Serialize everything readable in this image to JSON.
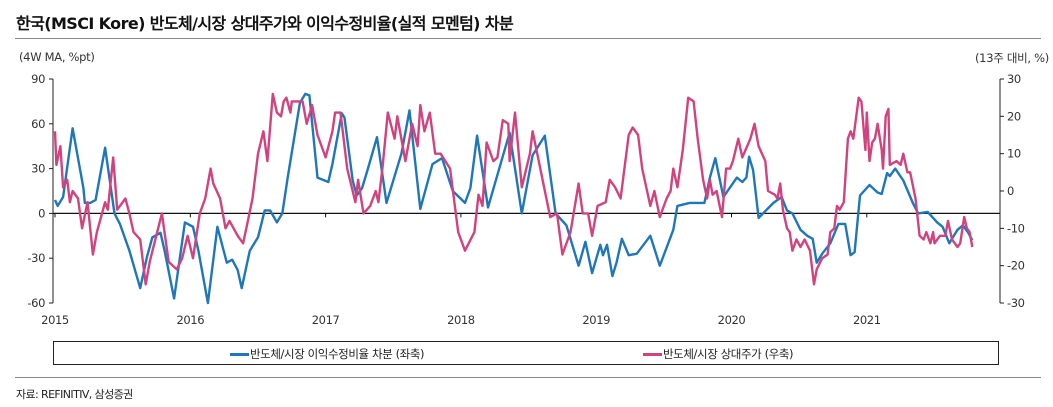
{
  "title": "한국(MSCI Kore) 반도체/시장 상대주가와 이익수정비율(실적 모멘텀) 차분",
  "left_unit": "(4W MA, %pt)",
  "right_unit": "(13주 대비, %)",
  "source": "자료: REFINITIV, 삼성증권",
  "colors": {
    "blue": "#1f77b8",
    "pink": "#d1437f"
  },
  "chart_data": {
    "type": "line",
    "title": "한국(MSCI Kore) 반도체/시장 상대주가와 이익수정비율(실적 모멘텀) 차분",
    "xlabel": "",
    "x_ticks": [
      "2015",
      "2016",
      "2017",
      "2018",
      "2019",
      "2020",
      "2021"
    ],
    "xlim": [
      2015,
      2022
    ],
    "left_axis": {
      "label": "(4W MA, %pt)",
      "ylim": [
        -60,
        90
      ],
      "ticks": [
        "90",
        "60",
        "30",
        "0",
        "-30",
        "-60"
      ]
    },
    "right_axis": {
      "label": "(13주 대비, %)",
      "ylim": [
        -30,
        30
      ],
      "ticks": [
        "30",
        "20",
        "10",
        "0",
        "-10",
        "-20",
        "-30"
      ]
    },
    "legend_position": "bottom",
    "series": [
      {
        "name": "반도체/시장 이익수정비율 차분 (좌축)",
        "axis": "left",
        "color": "#1f77b8",
        "x": [
          2015.0,
          2015.02,
          2015.06,
          2015.13,
          2015.21,
          2015.22,
          2015.26,
          2015.3,
          2015.37,
          2015.44,
          2015.48,
          2015.55,
          2015.63,
          2015.68,
          2015.72,
          2015.78,
          2015.81,
          2015.88,
          2015.96,
          2016.02,
          2016.06,
          2016.13,
          2016.2,
          2016.27,
          2016.31,
          2016.35,
          2016.38,
          2016.44,
          2016.5,
          2016.55,
          2016.59,
          2016.64,
          2016.68,
          2016.72,
          2016.81,
          2016.85,
          2016.88,
          2016.94,
          2017.02,
          2017.05,
          2017.12,
          2017.14,
          2017.2,
          2017.23,
          2017.27,
          2017.31,
          2017.38,
          2017.45,
          2017.56,
          2017.62,
          2017.7,
          2017.79,
          2017.86,
          2017.94,
          2018.03,
          2018.07,
          2018.12,
          2018.2,
          2018.36,
          2018.45,
          2018.53,
          2018.62,
          2018.7,
          2018.78,
          2018.87,
          2018.92,
          2018.97,
          2019.03,
          2019.05,
          2019.08,
          2019.12,
          2019.15,
          2019.19,
          2019.24,
          2019.3,
          2019.4,
          2019.47,
          2019.57,
          2019.6,
          2019.69,
          2019.8,
          2019.84,
          2019.88,
          2019.94,
          2020.04,
          2020.08,
          2020.11,
          2020.13,
          2020.16,
          2020.2,
          2020.31,
          2020.37,
          2020.41,
          2020.45,
          2020.51,
          2020.56,
          2020.6,
          2020.63,
          2020.67,
          2020.73,
          2020.79,
          2020.84,
          2020.88,
          2020.91,
          2020.95,
          2021.02,
          2021.08,
          2021.11,
          2021.15,
          2021.17,
          2021.21,
          2021.27,
          2021.34,
          2021.38,
          2021.45,
          2021.52,
          2021.56,
          2021.61,
          2021.67,
          2021.71,
          2021.75,
          2021.78
        ],
        "values": [
          9,
          5,
          11,
          57,
          17,
          7,
          7,
          9,
          44,
          0,
          -7,
          -25,
          -50,
          -29,
          -16,
          -13,
          -25,
          -57,
          -6,
          -9,
          -25,
          -60,
          -9,
          -33,
          -31,
          -38,
          -50,
          -25,
          -16,
          2,
          2,
          -6,
          0,
          24,
          74,
          80,
          79,
          24,
          21,
          33,
          67,
          64,
          22,
          12,
          17,
          29,
          51,
          7,
          40,
          69,
          3,
          33,
          37,
          15,
          7,
          17,
          52,
          4,
          54,
          0,
          39,
          52,
          0,
          -8,
          -35,
          -19,
          -40,
          -21,
          -28,
          -21,
          -42,
          -33,
          -17,
          -28,
          -27,
          -15,
          -35,
          -11,
          5,
          7,
          7,
          24,
          37,
          11,
          24,
          21,
          24,
          38,
          29,
          -3,
          7,
          11,
          2,
          0,
          -11,
          -15,
          -17,
          -33,
          -27,
          -20,
          -7,
          -7,
          -28,
          -26,
          12,
          19,
          14,
          13,
          27,
          25,
          30,
          22,
          7,
          0,
          1,
          -6,
          -9,
          -20,
          -11,
          -8,
          -13,
          -18
        ]
      },
      {
        "name": "반도체/시장 상대주가 (우축)",
        "axis": "right",
        "color": "#d1437f",
        "x": [
          2015.0,
          2015.01,
          2015.04,
          2015.06,
          2015.09,
          2015.11,
          2015.13,
          2015.17,
          2015.2,
          2015.24,
          2015.28,
          2015.31,
          2015.37,
          2015.39,
          2015.43,
          2015.46,
          2015.52,
          2015.55,
          2015.58,
          2015.63,
          2015.67,
          2015.7,
          2015.79,
          2015.84,
          2015.9,
          2015.94,
          2015.98,
          2016.02,
          2016.07,
          2016.11,
          2016.15,
          2016.17,
          2016.22,
          2016.26,
          2016.29,
          2016.35,
          2016.39,
          2016.42,
          2016.46,
          2016.5,
          2016.54,
          2016.57,
          2016.61,
          2016.64,
          2016.67,
          2016.69,
          2016.71,
          2016.74,
          2016.75,
          2016.79,
          2016.83,
          2016.86,
          2016.9,
          2016.94,
          2017.0,
          2017.05,
          2017.07,
          2017.11,
          2017.16,
          2017.22,
          2017.24,
          2017.28,
          2017.33,
          2017.37,
          2017.39,
          2017.42,
          2017.46,
          2017.51,
          2017.53,
          2017.59,
          2017.64,
          2017.68,
          2017.7,
          2017.73,
          2017.77,
          2017.81,
          2017.85,
          2017.92,
          2017.98,
          2018.03,
          2018.1,
          2018.13,
          2018.16,
          2018.19,
          2018.24,
          2018.27,
          2018.31,
          2018.35,
          2018.36,
          2018.4,
          2018.45,
          2018.51,
          2018.53,
          2018.57,
          2018.66,
          2018.71,
          2018.75,
          2018.81,
          2018.87,
          2018.9,
          2018.94,
          2018.97,
          2019.01,
          2019.07,
          2019.1,
          2019.14,
          2019.18,
          2019.24,
          2019.27,
          2019.31,
          2019.34,
          2019.4,
          2019.43,
          2019.47,
          2019.52,
          2019.55,
          2019.57,
          2019.6,
          2019.64,
          2019.68,
          2019.72,
          2019.75,
          2019.79,
          2019.82,
          2019.84,
          2019.86,
          2019.89,
          2019.93,
          2019.96,
          2019.99,
          2020.01,
          2020.05,
          2020.08,
          2020.14,
          2020.17,
          2020.2,
          2020.25,
          2020.27,
          2020.32,
          2020.34,
          2020.36,
          2020.38,
          2020.41,
          2020.43,
          2020.45,
          2020.48,
          2020.51,
          2020.54,
          2020.58,
          2020.61,
          2020.63,
          2020.67,
          2020.71,
          2020.73,
          2020.76,
          2020.78,
          2020.8,
          2020.83,
          2020.86,
          2020.88,
          2020.9,
          2020.94,
          2020.96,
          2020.99,
          2021.0,
          2021.02,
          2021.04,
          2021.06,
          2021.08,
          2021.11,
          2021.12,
          2021.14,
          2021.16,
          2021.17,
          2021.22,
          2021.25,
          2021.27,
          2021.3,
          2021.32,
          2021.36,
          2021.39,
          2021.42,
          2021.44,
          2021.47,
          2021.49,
          2021.5,
          2021.54,
          2021.58,
          2021.6,
          2021.63,
          2021.67,
          2021.69,
          2021.72,
          2021.74,
          2021.76,
          2021.78
        ],
        "values": [
          16,
          7,
          12,
          1,
          3,
          -3,
          0,
          -2,
          -10,
          -3,
          -17,
          -11,
          -3,
          -5,
          9,
          -5,
          -2,
          -6,
          -11,
          -13,
          -25,
          -19,
          -6,
          -19,
          -21,
          -18,
          -12,
          -18,
          -6,
          -2,
          6,
          2,
          -2,
          -10,
          -8,
          -12,
          -14,
          -9,
          -2,
          10,
          16,
          8,
          26,
          21,
          20,
          24,
          25,
          21,
          24,
          24,
          24,
          18,
          23,
          15,
          9,
          16,
          21,
          21,
          6,
          -3,
          3,
          -6,
          -4,
          0,
          -3,
          6,
          21,
          14,
          20,
          8,
          18,
          12,
          23,
          16,
          21,
          10,
          10,
          6,
          -11,
          -16,
          -11,
          -1,
          -4,
          13,
          8,
          9,
          19,
          18,
          8,
          21,
          1,
          10,
          16,
          9,
          -7,
          -6,
          -17,
          -11,
          2,
          -6,
          -6,
          -12,
          -4,
          -3,
          3,
          1,
          -2,
          15,
          17,
          15,
          6,
          -4,
          0,
          -7,
          -2,
          0,
          6,
          1,
          11,
          25,
          24,
          14,
          3,
          -2,
          3,
          -1,
          0,
          -7,
          6,
          6,
          8,
          14,
          9,
          14,
          18,
          12,
          8,
          0,
          -1,
          -2,
          2,
          -5,
          -10,
          -11,
          -16,
          -13,
          -15,
          -13,
          -16,
          -25,
          -21,
          -18,
          -17,
          -11,
          -10,
          -4,
          -5,
          -3,
          14,
          16,
          14,
          25,
          24,
          11,
          21,
          8,
          13,
          14,
          18,
          11,
          6,
          20,
          22,
          7,
          8,
          7,
          10,
          5,
          5,
          -2,
          -12,
          -13,
          -11,
          -14,
          -11,
          -14,
          -12,
          -12,
          -8,
          -13,
          -15,
          -14,
          -7,
          -10,
          -11,
          -15
        ]
      }
    ]
  }
}
